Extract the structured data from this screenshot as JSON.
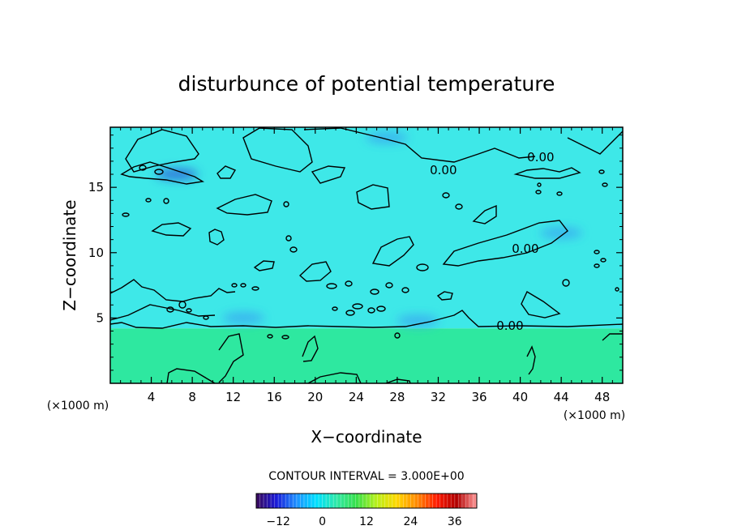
{
  "chart_data": {
    "type": "heatmap",
    "title": "disturbunce of potential temperature",
    "xlabel": "X−coordinate",
    "ylabel": "Z−coordinate",
    "x_unit": "(×1000 m)",
    "x_unit_right": "(×1000 m)",
    "xlim": [
      0,
      50
    ],
    "ylim": [
      0,
      19.6
    ],
    "x_ticks": [
      4,
      8,
      12,
      16,
      20,
      24,
      28,
      32,
      36,
      40,
      44,
      48
    ],
    "y_ticks": [
      5,
      10,
      15
    ],
    "contour_interval_text": "CONTOUR INTERVAL = 3.000E+00",
    "contour_labels": [
      {
        "text": "0.00",
        "x": 32.5,
        "z": 16.3
      },
      {
        "text": "0.00",
        "x": 42.0,
        "z": 17.3
      },
      {
        "text": "0.00",
        "x": 40.5,
        "z": 10.3
      },
      {
        "text": "0.00",
        "x": 39.0,
        "z": 4.4
      }
    ],
    "interface_z": 4.2,
    "field": {
      "upper_layer_value": -3,
      "lower_layer_value": 3,
      "cold_spots": [
        {
          "x": 6.5,
          "z": 16.0,
          "value": -9
        },
        {
          "x": 30.0,
          "z": 4.8,
          "value": -6
        },
        {
          "x": 13.0,
          "z": 5.0,
          "value": -6
        },
        {
          "x": 27.0,
          "z": 18.8,
          "value": -6
        },
        {
          "x": 44.0,
          "z": 11.5,
          "value": -6
        }
      ]
    },
    "colorbar": {
      "range": [
        -18,
        42
      ],
      "ticks": [
        -12,
        0,
        12,
        24,
        36
      ],
      "tick_labels": [
        "−12",
        "0",
        "12",
        "24",
        "36"
      ],
      "colors": [
        "#3a0a5a",
        "#1a1ad8",
        "#1e90ff",
        "#00e0ff",
        "#2ee8a8",
        "#38e04a",
        "#b8f01a",
        "#ffd800",
        "#ff8a00",
        "#ff1a00",
        "#b00000",
        "#ff9a9a"
      ]
    },
    "colors": {
      "upper_layer": "#3ee8e8",
      "lower_layer": "#2ee8a0",
      "cold_spot": "#3aa8f0",
      "strong_cold": "#2a5ad8",
      "contour": "#000000"
    }
  }
}
